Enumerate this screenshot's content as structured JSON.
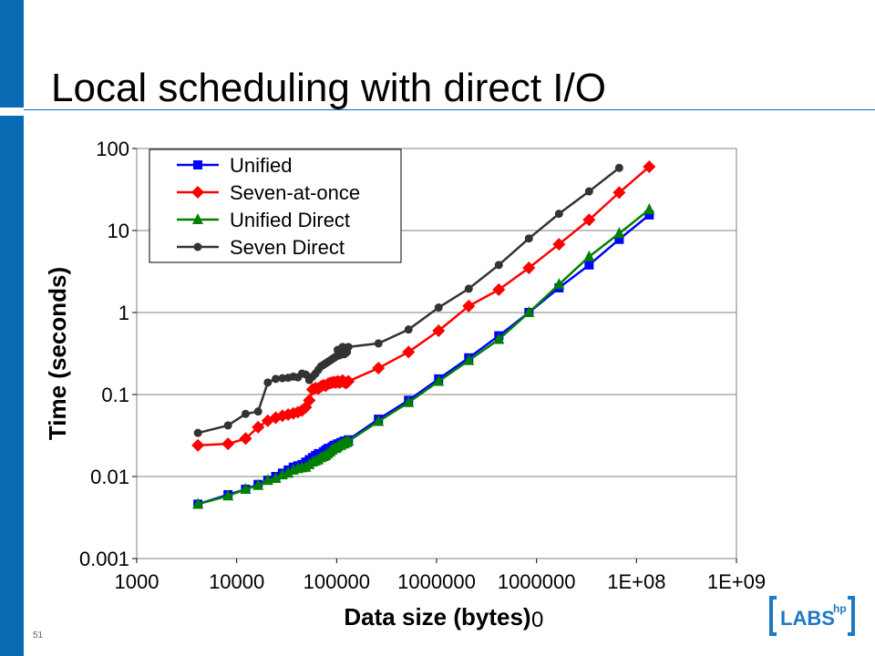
{
  "slide": {
    "title": "Local scheduling with direct I/O",
    "number": "51"
  },
  "logo": {
    "text": "LABS",
    "superscript": "hp"
  },
  "chart_data": {
    "type": "line",
    "ylabel": "Time (seconds)",
    "xlabel": "Data size (bytes)",
    "x_scale": "log",
    "y_scale": "log",
    "xlim": [
      1000,
      1000000000
    ],
    "ylim": [
      0.001,
      100
    ],
    "x_tick_labels": [
      "1000",
      "10000",
      "100000",
      "1000000",
      "1000000",
      "1E+08",
      "1E+09"
    ],
    "y_tick_labels": [
      "100",
      "10",
      "1",
      "0.1",
      "0.01",
      "0.001"
    ],
    "stray_label": "0",
    "grid": "horizontal",
    "legend_position": "top-left",
    "series": [
      {
        "name": "Unified",
        "color": "#0000ff",
        "marker": "square",
        "x": [
          4096,
          8192,
          12288,
          16384,
          20480,
          24576,
          28672,
          32768,
          36864,
          40960,
          45056,
          49152,
          53248,
          57344,
          61440,
          65536,
          69632,
          73728,
          77824,
          81920,
          86016,
          90112,
          94208,
          98304,
          102400,
          106496,
          110592,
          114688,
          118784,
          122880,
          126976,
          131072,
          262144,
          524288,
          1048576,
          2097152,
          4194304,
          8388608,
          16777216,
          33554432,
          67108864,
          134217728
        ],
        "y": [
          0.0046,
          0.006,
          0.007,
          0.008,
          0.009,
          0.01,
          0.011,
          0.012,
          0.013,
          0.0135,
          0.014,
          0.015,
          0.016,
          0.017,
          0.018,
          0.019,
          0.019,
          0.02,
          0.021,
          0.022,
          0.022,
          0.023,
          0.024,
          0.024,
          0.025,
          0.025,
          0.026,
          0.026,
          0.027,
          0.027,
          0.027,
          0.028,
          0.05,
          0.085,
          0.155,
          0.28,
          0.52,
          1.0,
          2.0,
          3.8,
          7.8,
          15.5
        ]
      },
      {
        "name": "Seven-at-once",
        "color": "#ff0000",
        "marker": "diamond",
        "x": [
          4096,
          8192,
          12288,
          16384,
          20480,
          24576,
          28672,
          32768,
          36864,
          40960,
          45056,
          49152,
          53248,
          57344,
          61440,
          65536,
          69632,
          73728,
          77824,
          81920,
          86016,
          90112,
          94208,
          98304,
          102400,
          106496,
          110592,
          114688,
          118784,
          122880,
          126976,
          131072,
          262144,
          524288,
          1048576,
          2097152,
          4194304,
          8388608,
          16777216,
          33554432,
          67108864,
          134217728
        ],
        "y": [
          0.024,
          0.025,
          0.029,
          0.04,
          0.048,
          0.052,
          0.055,
          0.057,
          0.059,
          0.061,
          0.064,
          0.07,
          0.085,
          0.115,
          0.12,
          0.118,
          0.125,
          0.13,
          0.128,
          0.135,
          0.138,
          0.14,
          0.142,
          0.14,
          0.145,
          0.14,
          0.143,
          0.148,
          0.142,
          0.138,
          0.14,
          0.145,
          0.21,
          0.33,
          0.6,
          1.2,
          1.9,
          3.5,
          6.8,
          13.5,
          29.0,
          60.0
        ]
      },
      {
        "name": "Unified Direct",
        "color": "#008000",
        "marker": "triangle",
        "x": [
          4096,
          8192,
          12288,
          16384,
          20480,
          24576,
          28672,
          32768,
          36864,
          40960,
          45056,
          49152,
          53248,
          57344,
          61440,
          65536,
          69632,
          73728,
          77824,
          81920,
          86016,
          90112,
          94208,
          98304,
          102400,
          106496,
          110592,
          114688,
          118784,
          122880,
          126976,
          131072,
          262144,
          524288,
          1048576,
          2097152,
          4194304,
          8388608,
          16777216,
          33554432,
          67108864,
          134217728
        ],
        "y": [
          0.0046,
          0.0058,
          0.007,
          0.0078,
          0.009,
          0.0095,
          0.0105,
          0.011,
          0.012,
          0.0125,
          0.0128,
          0.013,
          0.014,
          0.015,
          0.0155,
          0.016,
          0.017,
          0.0175,
          0.018,
          0.019,
          0.02,
          0.021,
          0.022,
          0.022,
          0.023,
          0.024,
          0.024,
          0.025,
          0.025,
          0.026,
          0.026,
          0.027,
          0.047,
          0.08,
          0.145,
          0.26,
          0.47,
          1.0,
          2.2,
          4.8,
          9.2,
          18.0
        ]
      },
      {
        "name": "Seven Direct",
        "color": "#333333",
        "marker": "circle",
        "x": [
          4096,
          8192,
          12288,
          16384,
          20480,
          24576,
          28672,
          32768,
          36864,
          40960,
          45056,
          49152,
          53248,
          57344,
          61440,
          65536,
          69632,
          73728,
          77824,
          81920,
          86016,
          90112,
          94208,
          98304,
          102400,
          106496,
          110592,
          114688,
          118784,
          122880,
          126976,
          131072,
          262144,
          524288,
          1048576,
          2097152,
          4194304,
          8388608,
          16777216,
          33554432,
          67108864
        ],
        "y": [
          0.034,
          0.042,
          0.058,
          0.062,
          0.14,
          0.155,
          0.158,
          0.16,
          0.165,
          0.162,
          0.18,
          0.175,
          0.15,
          0.165,
          0.18,
          0.2,
          0.22,
          0.23,
          0.24,
          0.25,
          0.26,
          0.27,
          0.28,
          0.29,
          0.35,
          0.3,
          0.33,
          0.38,
          0.31,
          0.32,
          0.33,
          0.38,
          0.42,
          0.62,
          1.15,
          1.95,
          3.8,
          8.0,
          16.0,
          30.0,
          58.0
        ]
      }
    ]
  }
}
